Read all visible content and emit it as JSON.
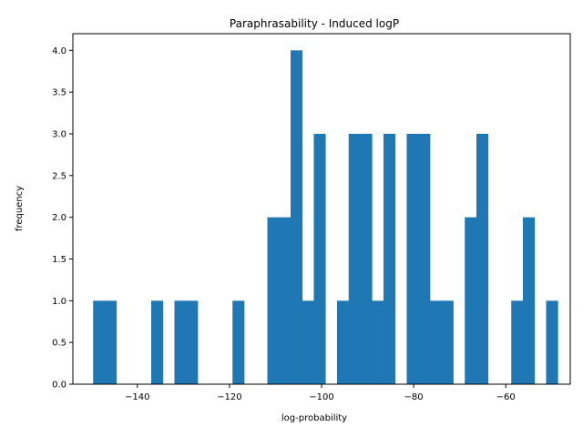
{
  "chart_data": {
    "type": "bar",
    "title": "Paraphrasability - Induced logP",
    "xlabel": "log-probability",
    "ylabel": "frequency",
    "xlim": [
      -154,
      -46
    ],
    "ylim": [
      0,
      4.2
    ],
    "bin_width": 2.52,
    "bins": [
      {
        "start": -149.6,
        "count": 1
      },
      {
        "start": -147.08,
        "count": 1
      },
      {
        "start": -136.99,
        "count": 1
      },
      {
        "start": -131.95,
        "count": 1
      },
      {
        "start": -129.43,
        "count": 1
      },
      {
        "start": -119.34,
        "count": 1
      },
      {
        "start": -111.77,
        "count": 2
      },
      {
        "start": -109.25,
        "count": 2
      },
      {
        "start": -106.73,
        "count": 4
      },
      {
        "start": -104.21,
        "count": 1
      },
      {
        "start": -101.69,
        "count": 3
      },
      {
        "start": -96.64,
        "count": 1
      },
      {
        "start": -94.12,
        "count": 3
      },
      {
        "start": -91.6,
        "count": 3
      },
      {
        "start": -89.07,
        "count": 1
      },
      {
        "start": -86.55,
        "count": 3
      },
      {
        "start": -81.51,
        "count": 3
      },
      {
        "start": -78.99,
        "count": 3
      },
      {
        "start": -76.46,
        "count": 1
      },
      {
        "start": -73.94,
        "count": 1
      },
      {
        "start": -68.9,
        "count": 2
      },
      {
        "start": -66.38,
        "count": 3
      },
      {
        "start": -58.81,
        "count": 1
      },
      {
        "start": -56.29,
        "count": 2
      },
      {
        "start": -51.24,
        "count": 1
      }
    ],
    "xticks": [
      -140,
      -120,
      -100,
      -80,
      -60
    ],
    "xtick_labels": [
      "−140",
      "−120",
      "−100",
      "−80",
      "−60"
    ],
    "yticks": [
      0.0,
      0.5,
      1.0,
      1.5,
      2.0,
      2.5,
      3.0,
      3.5,
      4.0
    ],
    "ytick_labels": [
      "0.0",
      "0.5",
      "1.0",
      "1.5",
      "2.0",
      "2.5",
      "3.0",
      "3.5",
      "4.0"
    ],
    "grid": false,
    "bar_color": "#1f77b4"
  }
}
